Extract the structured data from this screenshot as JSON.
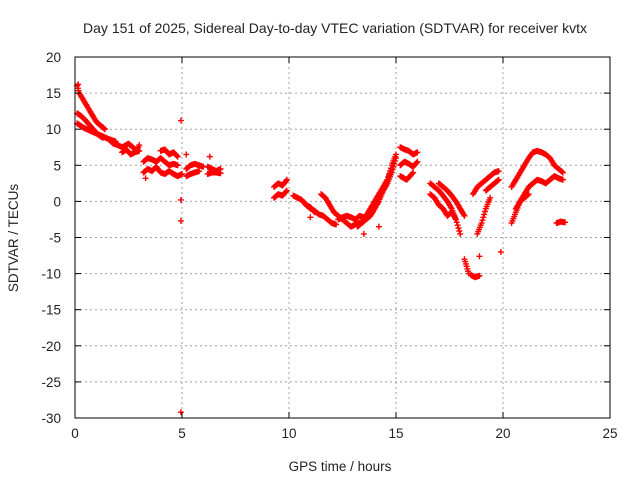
{
  "chart_data": {
    "type": "scatter",
    "title": "Day 151 of 2025, Sidereal Day-to-day VTEC variation (SDTVAR) for receiver kvtx",
    "xlabel": "GPS time / hours",
    "ylabel": "SDTVAR / TECUs",
    "xlim": [
      0,
      25
    ],
    "ylim": [
      -30,
      20
    ],
    "x_ticks": [
      "0",
      "5",
      "10",
      "15",
      "20",
      "25"
    ],
    "y_ticks": [
      "-30",
      "-25",
      "-20",
      "-15",
      "-10",
      "-5",
      "0",
      "5",
      "10",
      "15",
      "20"
    ],
    "grid": true,
    "marker": "+",
    "color": "#ff0000",
    "series": [
      {
        "name": "SDTVAR",
        "segments": [
          {
            "x": [
              0.1,
              0.2,
              0.4,
              0.6,
              0.8,
              1.0,
              1.2,
              1.4
            ],
            "y": [
              16.0,
              15.0,
              14.0,
              13.0,
              12.0,
              11.0,
              10.5,
              10.0
            ]
          },
          {
            "x": [
              0.1,
              0.3,
              0.5,
              0.7,
              0.9,
              1.1,
              1.3
            ],
            "y": [
              12.2,
              11.8,
              11.2,
              10.5,
              9.8,
              9.2,
              8.8
            ]
          },
          {
            "x": [
              0.1,
              0.4,
              0.7,
              1.0,
              1.3,
              1.6,
              1.9
            ],
            "y": [
              10.8,
              10.2,
              9.8,
              9.4,
              9.0,
              8.6,
              8.3
            ]
          },
          {
            "x": [
              1.6,
              1.8,
              2.0,
              2.2,
              2.5,
              2.7,
              2.9,
              3.0
            ],
            "y": [
              8.5,
              8.0,
              7.8,
              7.5,
              8.0,
              7.5,
              7.0,
              7.8
            ]
          },
          {
            "x": [
              2.2,
              2.4,
              2.6,
              2.8,
              3.0
            ],
            "y": [
              6.8,
              7.2,
              6.5,
              6.8,
              7.0
            ]
          },
          {
            "x": [
              3.2,
              3.4,
              3.6,
              3.8,
              4.0,
              4.2,
              4.4,
              4.6,
              4.8
            ],
            "y": [
              5.5,
              6.0,
              5.8,
              5.5,
              6.0,
              5.5,
              5.0,
              5.2,
              5.0
            ]
          },
          {
            "x": [
              3.2,
              3.4,
              3.6,
              3.8,
              4.0,
              4.2,
              4.4,
              4.6,
              4.8,
              5.0
            ],
            "y": [
              4.0,
              4.5,
              4.2,
              4.8,
              4.0,
              3.8,
              4.2,
              3.8,
              3.5,
              3.8
            ]
          },
          {
            "x": [
              4.0,
              4.2,
              4.4,
              4.6,
              4.8
            ],
            "y": [
              7.0,
              7.2,
              6.5,
              6.8,
              6.2
            ]
          },
          {
            "x": [
              5.2,
              5.4,
              5.6,
              5.8,
              6.0
            ],
            "y": [
              4.5,
              5.0,
              5.2,
              5.0,
              4.8
            ]
          },
          {
            "x": [
              5.2,
              5.4,
              5.6,
              5.8
            ],
            "y": [
              3.5,
              3.8,
              4.0,
              4.2
            ]
          },
          {
            "x": [
              6.2,
              6.4,
              6.6,
              6.8
            ],
            "y": [
              4.8,
              4.5,
              4.2,
              4.5
            ]
          },
          {
            "x": [
              6.2,
              6.4,
              6.6,
              6.8
            ],
            "y": [
              3.8,
              4.0,
              4.0,
              3.9
            ]
          },
          {
            "x": [
              9.3,
              9.5,
              9.7,
              9.9
            ],
            "y": [
              2.0,
              2.5,
              2.2,
              3.0
            ]
          },
          {
            "x": [
              9.3,
              9.5,
              9.7,
              9.9
            ],
            "y": [
              0.5,
              1.0,
              0.8,
              1.5
            ]
          },
          {
            "x": [
              10.2,
              10.4,
              10.6,
              10.8,
              11.0,
              11.2
            ],
            "y": [
              0.8,
              0.5,
              0.2,
              -0.5,
              -0.8,
              -1.5
            ]
          },
          {
            "x": [
              10.8,
              11.0,
              11.2,
              11.4,
              11.6,
              11.8,
              12.0,
              12.2
            ],
            "y": [
              -0.5,
              -1.0,
              -1.3,
              -1.8,
              -2.0,
              -2.5,
              -3.0,
              -3.2
            ]
          },
          {
            "x": [
              11.5,
              11.7,
              11.9,
              12.1,
              12.3,
              12.5,
              12.7,
              12.9,
              13.1,
              13.3
            ],
            "y": [
              1.0,
              0.5,
              -0.5,
              -1.5,
              -2.0,
              -2.5,
              -3.0,
              -3.5,
              -3.2,
              -3.0
            ]
          },
          {
            "x": [
              12.3,
              12.5,
              12.7,
              12.9,
              13.1,
              13.3,
              13.5,
              13.7,
              13.9
            ],
            "y": [
              -2.5,
              -2.2,
              -2.0,
              -2.2,
              -2.5,
              -2.0,
              -2.2,
              -2.0,
              -1.5
            ]
          },
          {
            "x": [
              13.2,
              13.4,
              13.6,
              13.8,
              14.0,
              14.2,
              14.4,
              14.6,
              14.8,
              15.0
            ],
            "y": [
              -3.5,
              -3.0,
              -2.5,
              -2.0,
              -1.0,
              0.0,
              1.5,
              2.5,
              4.0,
              6.0
            ]
          },
          {
            "x": [
              13.4,
              13.6,
              13.8,
              14.0,
              14.2,
              14.4,
              14.6,
              14.8
            ],
            "y": [
              -2.8,
              -2.0,
              -1.0,
              0.0,
              1.0,
              2.0,
              3.0,
              4.5
            ]
          },
          {
            "x": [
              13.8,
              14.0,
              14.2,
              14.4,
              14.6,
              14.8,
              15.0
            ],
            "y": [
              -1.5,
              -0.5,
              0.5,
              1.5,
              3.0,
              5.0,
              6.5
            ]
          },
          {
            "x": [
              15.2,
              15.4,
              15.6,
              15.8,
              16.0
            ],
            "y": [
              7.5,
              7.2,
              7.0,
              6.5,
              6.8
            ]
          },
          {
            "x": [
              15.2,
              15.4,
              15.6,
              15.8,
              16.0
            ],
            "y": [
              5.0,
              5.5,
              5.2,
              4.8,
              5.5
            ]
          },
          {
            "x": [
              15.2,
              15.5,
              15.8
            ],
            "y": [
              3.5,
              3.0,
              4.0
            ]
          },
          {
            "x": [
              16.6,
              16.8,
              17.0,
              17.2,
              17.4,
              17.6,
              17.8,
              18.0
            ],
            "y": [
              2.5,
              2.0,
              1.5,
              0.8,
              0.0,
              -1.0,
              -2.5,
              -4.5
            ]
          },
          {
            "x": [
              16.6,
              16.8,
              17.0,
              17.2,
              17.4,
              17.6,
              17.8
            ],
            "y": [
              1.0,
              0.5,
              -0.5,
              -1.0,
              -2.0,
              -1.5,
              -2.5
            ]
          },
          {
            "x": [
              17.0,
              17.2,
              17.4,
              17.6,
              17.8,
              18.0,
              18.2
            ],
            "y": [
              2.5,
              2.0,
              1.5,
              0.8,
              0.0,
              -1.0,
              -2.0
            ]
          },
          {
            "x": [
              18.2,
              18.3,
              18.4
            ],
            "y": [
              -8.0,
              -9.0,
              -10.0
            ]
          },
          {
            "x": [
              18.5,
              18.7,
              18.9
            ],
            "y": [
              -10.2,
              -10.5,
              -10.3
            ]
          },
          {
            "x": [
              18.6,
              18.8,
              19.0,
              19.2,
              19.4,
              19.6,
              19.8
            ],
            "y": [
              1.0,
              2.0,
              2.5,
              3.0,
              3.5,
              4.0,
              4.2
            ]
          },
          {
            "x": [
              18.8,
              19.0,
              19.2,
              19.4
            ],
            "y": [
              -4.5,
              -3.0,
              -1.0,
              0.5
            ]
          },
          {
            "x": [
              19.2,
              19.4,
              19.6,
              19.8
            ],
            "y": [
              1.5,
              2.0,
              2.5,
              3.0
            ]
          },
          {
            "x": [
              19.9
            ],
            "y": [
              -7.0
            ]
          },
          {
            "x": [
              20.4,
              20.6,
              20.8,
              21.0,
              21.2,
              21.4,
              21.6,
              21.8,
              22.0,
              22.2,
              22.4,
              22.6,
              22.8
            ],
            "y": [
              2.0,
              3.0,
              4.0,
              5.0,
              6.0,
              6.8,
              7.0,
              6.8,
              6.5,
              6.0,
              5.0,
              4.5,
              4.0
            ]
          },
          {
            "x": [
              20.4,
              20.6,
              20.8,
              21.0,
              21.2,
              21.4,
              21.6,
              21.8,
              22.0,
              22.2,
              22.4,
              22.6,
              22.8
            ],
            "y": [
              -3.0,
              -1.5,
              0.0,
              1.0,
              2.0,
              2.5,
              3.0,
              2.8,
              2.5,
              3.0,
              3.5,
              3.2,
              3.0
            ]
          },
          {
            "x": [
              20.6,
              20.8,
              21.0,
              21.2
            ],
            "y": [
              -1.0,
              0.0,
              0.5,
              1.0
            ]
          },
          {
            "x": [
              22.5,
              22.7,
              22.9
            ],
            "y": [
              -3.0,
              -2.8,
              -2.9
            ]
          }
        ],
        "outliers": {
          "x": [
            0.15,
            4.95,
            4.95,
            4.95,
            4.95,
            5.2,
            3.3,
            6.3,
            11.0,
            13.5,
            14.2,
            18.9
          ],
          "y": [
            16.2,
            11.2,
            0.2,
            -2.7,
            -29.2,
            6.5,
            3.2,
            6.2,
            -2.2,
            -4.5,
            -3.5,
            -7.6
          ]
        }
      }
    ]
  }
}
